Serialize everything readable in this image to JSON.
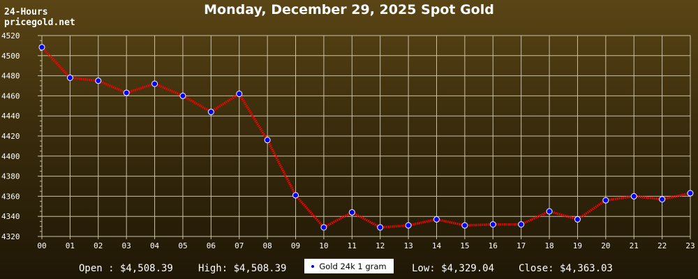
{
  "header": {
    "period": "24-Hours",
    "site": "pricegold.net"
  },
  "chart_data": {
    "type": "line",
    "title": "Monday, December 29, 2025 Spot Gold",
    "xlabel": "",
    "ylabel": "",
    "categories": [
      "00",
      "01",
      "02",
      "03",
      "04",
      "05",
      "06",
      "07",
      "08",
      "09",
      "10",
      "11",
      "12",
      "13",
      "14",
      "15",
      "16",
      "17",
      "18",
      "19",
      "20",
      "21",
      "22",
      "23"
    ],
    "yticks": [
      4320,
      4340,
      4360,
      4380,
      4400,
      4420,
      4440,
      4460,
      4480,
      4500,
      4520
    ],
    "ylim": [
      4320,
      4520
    ],
    "grid": true,
    "legend_position": "bottom-center",
    "series": [
      {
        "name": "Gold 24k 1 gram",
        "line_color": "#ff0000",
        "marker_color": "#0000ff",
        "values": [
          4508.39,
          4478,
          4475,
          4463,
          4472,
          4460,
          4444,
          4462,
          4416,
          4361,
          4329.04,
          4344,
          4329,
          4331,
          4337,
          4331,
          4332,
          4332,
          4345,
          4337,
          4356,
          4360,
          4357,
          4363.03
        ]
      }
    ]
  },
  "stats": {
    "open": "Open : $4,508.39",
    "high": "High: $4,508.39",
    "low": "Low: $4,329.04",
    "close": "Close: $4,363.03"
  },
  "legend": {
    "label": "Gold 24k 1 gram"
  }
}
